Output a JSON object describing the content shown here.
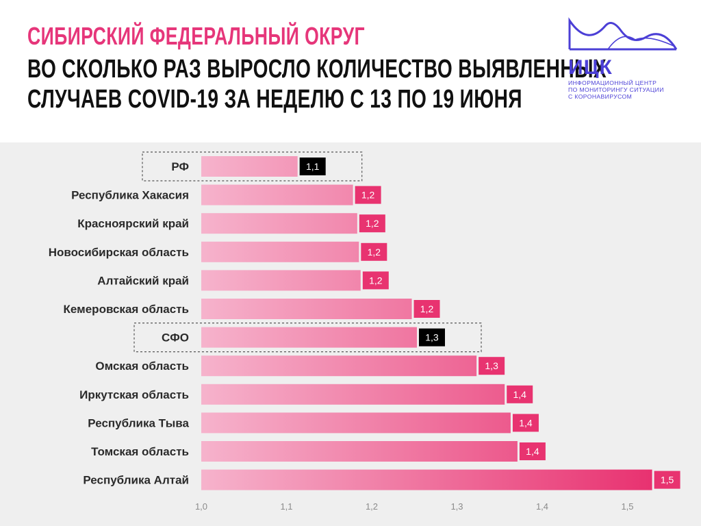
{
  "header": {
    "title_line1": "СИБИРСКИЙ ФЕДЕРАЛЬНЫЙ ОКРУГ",
    "title_line2": "ВО СКОЛЬКО РАЗ ВЫРОСЛО КОЛИЧЕСТВО ВЫЯВЛЕННЫХ",
    "title_line3": "СЛУЧАЕВ COVID-19 ЗА НЕДЕЛЮ С 13 ПО 19 ИЮНЯ"
  },
  "logo": {
    "name": "ИЦК",
    "subtitle_lines": [
      "ИНФОРМАЦИОННЫЙ ЦЕНТР",
      "ПО МОНИТОРИНГУ СИТУАЦИИ",
      "С КОРОНАВИРУСОМ"
    ],
    "color": "#4b3fd6"
  },
  "colors": {
    "title_accent": "#e6367a",
    "bar_start": "#f6b3cc",
    "bar_end": "#e8306f",
    "value_label": "#e83370",
    "highlight_label": "#000000"
  },
  "chart_data": {
    "type": "bar",
    "orientation": "horizontal",
    "title": "Во сколько раз выросло количество выявленных случаев COVID-19 за неделю с 13 по 19 июня",
    "xlim": [
      1.0,
      1.56
    ],
    "xticks": [
      1.0,
      1.1,
      1.2,
      1.3,
      1.4,
      1.5
    ],
    "xtick_labels": [
      "1,0",
      "1,1",
      "1,2",
      "1,3",
      "1,4",
      "1,5"
    ],
    "categories": [
      "РФ",
      "Республика Хакасия",
      "Красноярский край",
      "Новосибирская область",
      "Алтайский край",
      "Кемеровская область",
      "СФО",
      "Омская область",
      "Иркутская область",
      "Республика Тыва",
      "Томская область",
      "Республика Алтай"
    ],
    "values": [
      1.113,
      1.178,
      1.183,
      1.185,
      1.187,
      1.247,
      1.253,
      1.323,
      1.356,
      1.363,
      1.371,
      1.529
    ],
    "value_labels": [
      "1,1",
      "1,2",
      "1,2",
      "1,2",
      "1,2",
      "1,2",
      "1,3",
      "1,3",
      "1,4",
      "1,4",
      "1,4",
      "1,5"
    ],
    "highlighted": [
      "РФ",
      "СФО"
    ]
  }
}
